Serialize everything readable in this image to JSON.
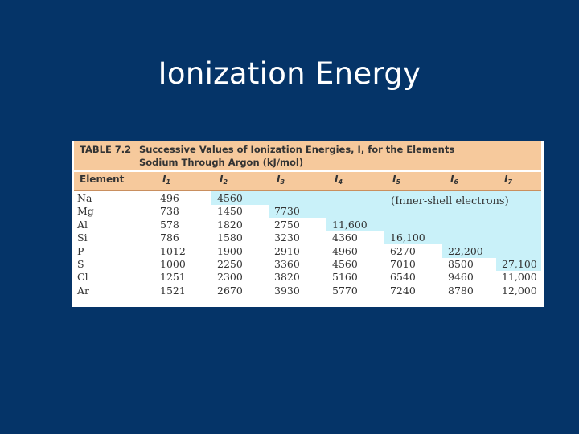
{
  "slide": {
    "title": "Ionization Energy"
  },
  "table": {
    "label": "TABLE 7.2",
    "caption_line1": "Successive Values of Ionization Energies, I, for the Elements",
    "caption_line2": "Sodium Through Argon (kJ/mol)",
    "note": "(Inner-shell electrons)",
    "headers": [
      {
        "main": "Element",
        "sub": ""
      },
      {
        "main": "I",
        "sub": "1"
      },
      {
        "main": "I",
        "sub": "2"
      },
      {
        "main": "I",
        "sub": "3"
      },
      {
        "main": "I",
        "sub": "4"
      },
      {
        "main": "I",
        "sub": "5"
      },
      {
        "main": "I",
        "sub": "6"
      },
      {
        "main": "I",
        "sub": "7"
      }
    ],
    "rows": [
      [
        "Na",
        "496",
        "4560",
        "",
        "",
        "",
        "",
        ""
      ],
      [
        "Mg",
        "738",
        "1450",
        "7730",
        "",
        "",
        "",
        ""
      ],
      [
        "Al",
        "578",
        "1820",
        "2750",
        "11,600",
        "",
        "",
        ""
      ],
      [
        "Si",
        "786",
        "1580",
        "3230",
        "4360",
        "16,100",
        "",
        ""
      ],
      [
        "P",
        "1012",
        "1900",
        "2910",
        "4960",
        "6270",
        "22,200",
        ""
      ],
      [
        "S",
        "1000",
        "2250",
        "3360",
        "4560",
        "7010",
        "8500",
        "27,100"
      ],
      [
        "Cl",
        "1251",
        "2300",
        "3820",
        "5160",
        "6540",
        "9460",
        "11,000"
      ],
      [
        "Ar",
        "1521",
        "2670",
        "3930",
        "5770",
        "7240",
        "8780",
        "12,000"
      ]
    ],
    "inner_shell_start_column": [
      2,
      3,
      4,
      5,
      6,
      7,
      8,
      8
    ],
    "colors": {
      "caption_bg": "#f6c99c",
      "inner_shell_bg": "#c9f1f9",
      "slide_bg": "#053468"
    }
  }
}
